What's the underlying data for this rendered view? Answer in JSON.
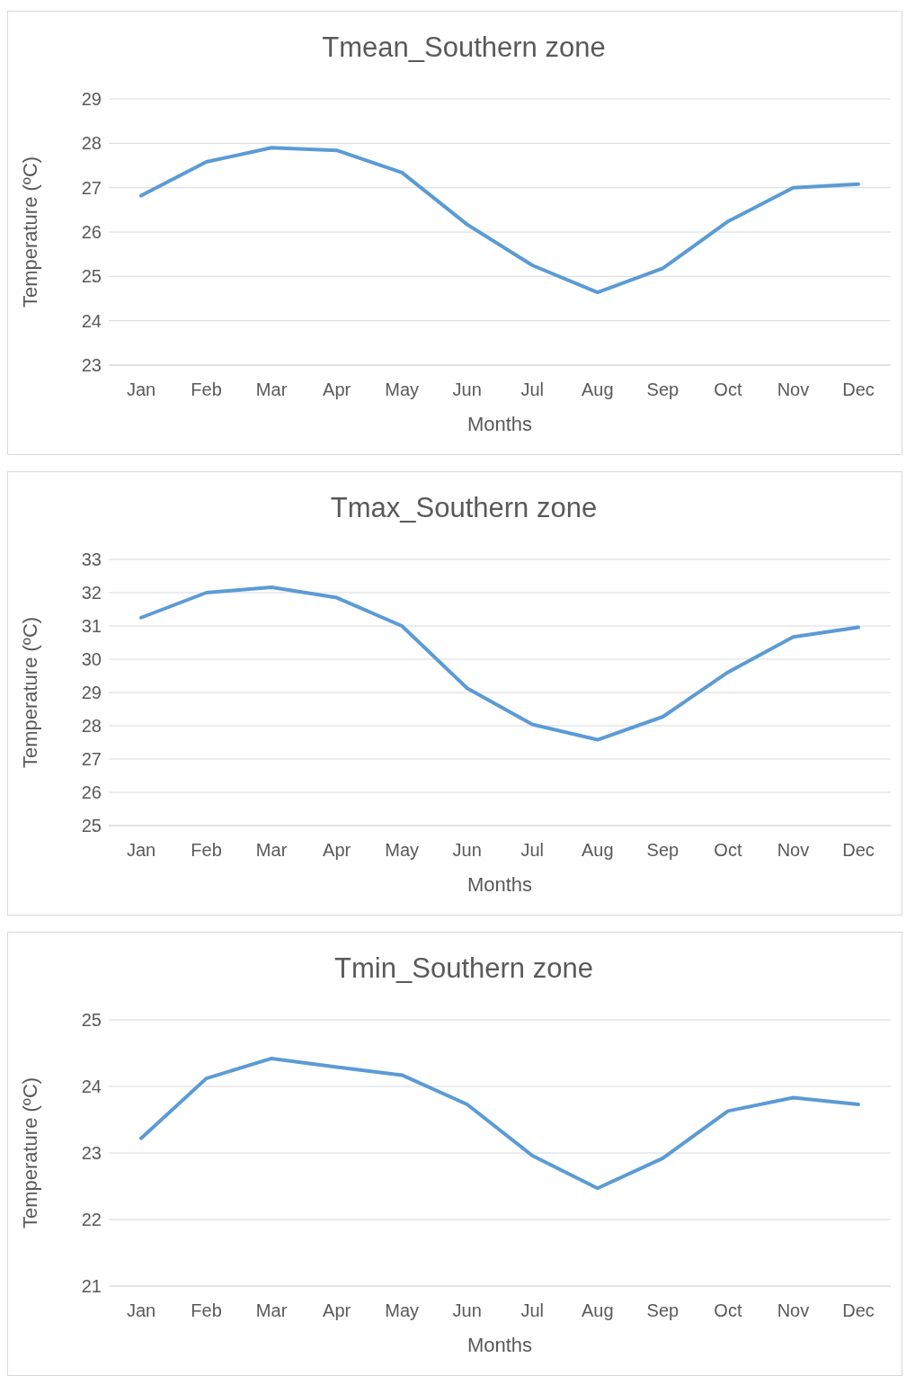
{
  "chart_data": [
    {
      "type": "line",
      "title": "Tmean_Southern zone",
      "xlabel": "Months",
      "ylabel": "Temperature (ºC)",
      "categories": [
        "Jan",
        "Feb",
        "Mar",
        "Apr",
        "May",
        "Jun",
        "Jul",
        "Aug",
        "Sep",
        "Oct",
        "Nov",
        "Dec"
      ],
      "values": [
        26.82,
        27.58,
        27.9,
        27.84,
        27.34,
        26.17,
        25.25,
        24.64,
        25.18,
        26.24,
        27.0,
        27.08
      ],
      "color": "#5b9bd5",
      "ylim": [
        23,
        29
      ],
      "yticks": [
        23,
        24,
        25,
        26,
        27,
        28,
        29
      ],
      "grid": "y",
      "marker": "none"
    },
    {
      "type": "line",
      "title": "Tmax_Southern zone",
      "xlabel": "Months",
      "ylabel": "Temperature (ºC)",
      "categories": [
        "Jan",
        "Feb",
        "Mar",
        "Apr",
        "May",
        "Jun",
        "Jul",
        "Aug",
        "Sep",
        "Oct",
        "Nov",
        "Dec"
      ],
      "values": [
        31.25,
        32.0,
        32.16,
        31.85,
        31.0,
        29.13,
        28.04,
        27.58,
        28.27,
        29.61,
        30.67,
        30.96
      ],
      "color": "#5b9bd5",
      "ylim": [
        25,
        33
      ],
      "yticks": [
        25,
        26,
        27,
        28,
        29,
        30,
        31,
        32,
        33
      ],
      "grid": "y",
      "marker": "none"
    },
    {
      "type": "line",
      "title": "Tmin_Southern zone",
      "xlabel": "Months",
      "ylabel": "Temperature (ºC)",
      "categories": [
        "Jan",
        "Feb",
        "Mar",
        "Apr",
        "May",
        "Jun",
        "Jul",
        "Aug",
        "Sep",
        "Oct",
        "Nov",
        "Dec"
      ],
      "values": [
        23.22,
        24.12,
        24.42,
        24.29,
        24.17,
        23.73,
        22.96,
        22.47,
        22.92,
        23.63,
        23.83,
        23.73
      ],
      "color": "#5b9bd5",
      "ylim": [
        21,
        25
      ],
      "yticks": [
        21,
        22,
        23,
        24,
        25
      ],
      "grid": "y",
      "marker": "none"
    }
  ]
}
